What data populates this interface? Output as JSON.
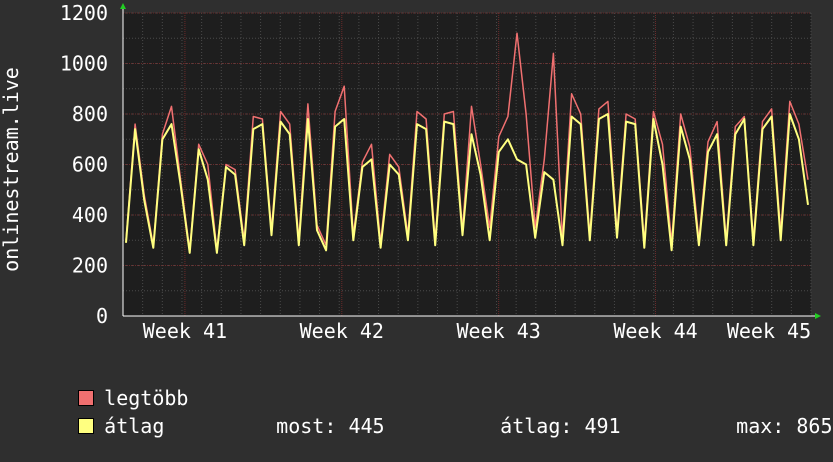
{
  "chart_data": {
    "type": "line",
    "ylabel": "onlinestream.live",
    "xlabel": "",
    "ylim": [
      0,
      1200
    ],
    "y_ticks": [
      0,
      200,
      400,
      600,
      800,
      1000,
      1200
    ],
    "x_tick_labels": [
      "Week 41",
      "Week 42",
      "Week 43",
      "Week 44",
      "Week 45"
    ],
    "grid": true,
    "series": [
      {
        "name": "legtöbb",
        "color": "#f07070",
        "values": [
          300,
          760,
          480,
          280,
          720,
          830,
          540,
          260,
          680,
          600,
          260,
          600,
          580,
          300,
          790,
          780,
          340,
          810,
          760,
          300,
          840,
          360,
          280,
          810,
          910,
          320,
          610,
          680,
          290,
          640,
          590,
          320,
          810,
          780,
          300,
          800,
          810,
          340,
          830,
          600,
          350,
          710,
          790,
          1120,
          800,
          350,
          620,
          1040,
          300,
          880,
          800,
          320,
          820,
          850,
          330,
          800,
          780,
          290,
          810,
          680,
          290,
          800,
          670,
          300,
          690,
          770,
          300,
          750,
          790,
          300,
          770,
          820,
          330,
          850,
          760,
          540
        ]
      },
      {
        "name": "átlag",
        "color": "#ffff80",
        "values": [
          290,
          740,
          460,
          270,
          700,
          760,
          520,
          250,
          660,
          540,
          250,
          590,
          560,
          280,
          740,
          760,
          320,
          770,
          720,
          280,
          780,
          340,
          260,
          750,
          780,
          300,
          590,
          620,
          270,
          600,
          560,
          300,
          760,
          740,
          280,
          770,
          760,
          320,
          720,
          560,
          300,
          650,
          700,
          620,
          600,
          310,
          570,
          540,
          280,
          790,
          760,
          300,
          780,
          800,
          310,
          770,
          760,
          270,
          780,
          600,
          260,
          750,
          620,
          280,
          650,
          720,
          280,
          720,
          780,
          280,
          740,
          790,
          300,
          800,
          700,
          440
        ]
      }
    ],
    "stats": {
      "current_label": "most:",
      "current_value": "445",
      "avg_label": "átlag:",
      "avg_value": "491",
      "max_label": "max:",
      "max_value": "865"
    }
  }
}
